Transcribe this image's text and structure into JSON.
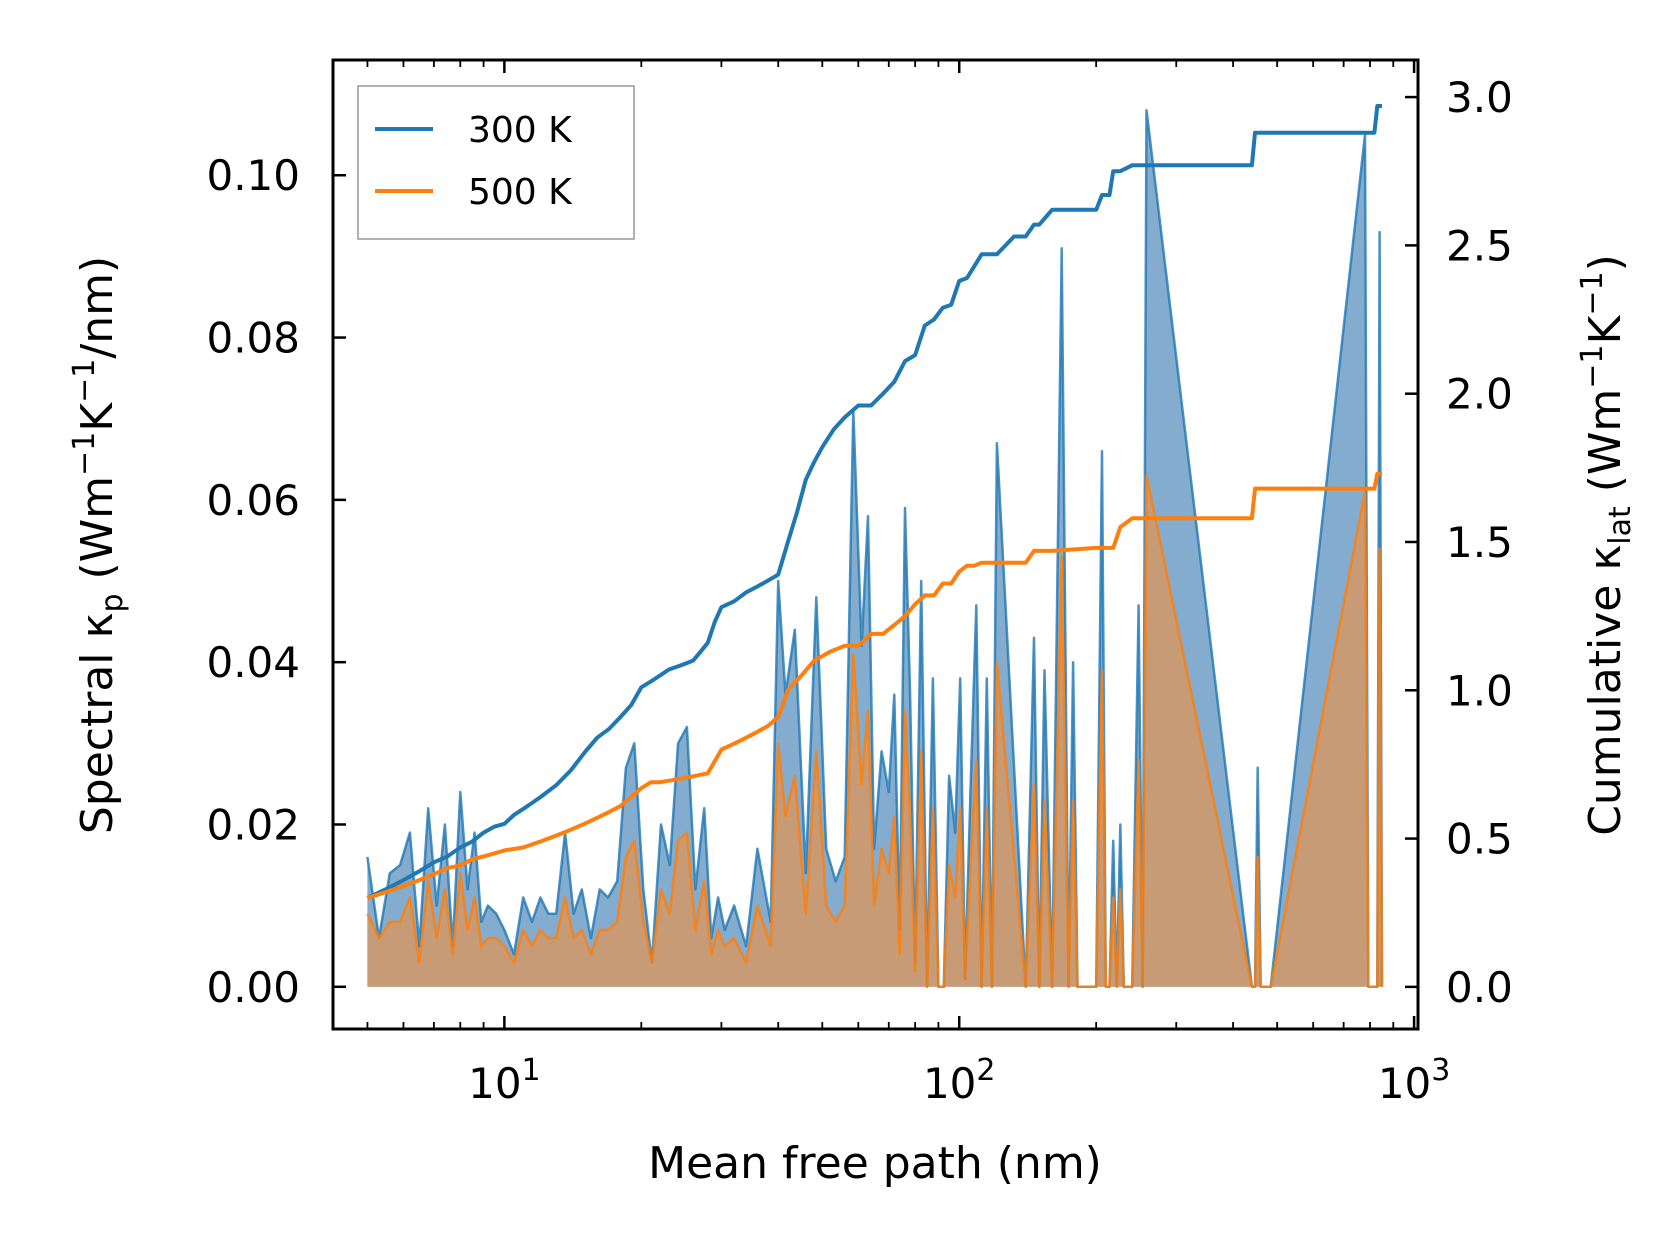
{
  "chart_data": {
    "type": "line",
    "xlabel": "Mean free path (nm)",
    "ylabel_left": {
      "main": "Spectral κ",
      "sub": "p",
      "units_pre": "(Wm",
      "exp1": "−1",
      "units_mid": "K",
      "exp2": "−1",
      "units_post": "/nm)"
    },
    "ylabel_right": {
      "main": "Cumulative κ",
      "sub": "lat",
      "units_pre": "(Wm",
      "exp1": "−1",
      "units_mid": "K",
      "exp2": "−1",
      "units_post": ")"
    },
    "x_scale": "log",
    "xlim": [
      4.2,
      1020
    ],
    "ylim_left": [
      -0.0052,
      0.1142
    ],
    "ylim_right": [
      -0.142,
      3.125
    ],
    "x_ticks": [
      {
        "value": 10,
        "base": "10",
        "exp": "1"
      },
      {
        "value": 100,
        "base": "10",
        "exp": "2"
      },
      {
        "value": 1000,
        "base": "10",
        "exp": "3"
      }
    ],
    "y_ticks_left": [
      "0.00",
      "0.02",
      "0.04",
      "0.06",
      "0.08",
      "0.10"
    ],
    "y_ticks_right": [
      "0.0",
      "0.5",
      "1.0",
      "1.5",
      "2.0",
      "2.5",
      "3.0"
    ],
    "legend": {
      "position": "upper-left",
      "entries": [
        "300 K",
        "500 K"
      ]
    },
    "colors": {
      "series_300K": "#1f77b4",
      "series_500K": "#ff7f0e",
      "fill_300K": "#6d9ec6",
      "fill_500K": "#c99a70"
    },
    "spectral": {
      "x": [
        5.0,
        5.3,
        5.6,
        5.9,
        6.2,
        6.5,
        6.8,
        7.1,
        7.4,
        7.7,
        8.0,
        8.3,
        8.6,
        8.9,
        9.2,
        9.6,
        10.0,
        10.5,
        11.0,
        11.5,
        12.0,
        12.5,
        13.0,
        13.6,
        14.2,
        14.8,
        15.5,
        16.2,
        16.9,
        17.7,
        18.5,
        19.3,
        20.2,
        21.1,
        22.1,
        23.1,
        24.1,
        25.2,
        26.3,
        27.5,
        28.5,
        29.5,
        30.5,
        32.0,
        34.0,
        36.0,
        38.5,
        40.0,
        41.5,
        43.5,
        46.0,
        48.5,
        51.0,
        53.5,
        56.0,
        58.5,
        61.0,
        63.0,
        65.0,
        67.5,
        70.0,
        72.0,
        74.0,
        76.0,
        78.0,
        80.0,
        82.5,
        85.0,
        87.5,
        90.0,
        92.5,
        95.0,
        98.0,
        100.5,
        103.0,
        106.0,
        109.0,
        112.0,
        115.0,
        118.0,
        121.0,
        140.0,
        146.0,
        150.0,
        154.0,
        160.0,
        168.0,
        174.0,
        178.0,
        182.0,
        200.0,
        206.0,
        210.0,
        214.0,
        218.0,
        222.0,
        226.0,
        230.0,
        240.0,
        248.0,
        253.0,
        258.0,
        440.0,
        447.0,
        453.0,
        460.0,
        468.0,
        476.0,
        484.0,
        780.0,
        793.0,
        805.0,
        818.0,
        830.0,
        840.0,
        850.0
      ],
      "k300": [
        0.016,
        0.006,
        0.014,
        0.015,
        0.019,
        0.005,
        0.022,
        0.01,
        0.02,
        0.005,
        0.024,
        0.012,
        0.019,
        0.008,
        0.01,
        0.009,
        0.007,
        0.004,
        0.011,
        0.008,
        0.011,
        0.009,
        0.009,
        0.019,
        0.009,
        0.012,
        0.006,
        0.012,
        0.011,
        0.013,
        0.027,
        0.03,
        0.012,
        0.003,
        0.02,
        0.015,
        0.03,
        0.032,
        0.012,
        0.022,
        0.006,
        0.011,
        0.007,
        0.01,
        0.005,
        0.017,
        0.008,
        0.05,
        0.036,
        0.044,
        0.014,
        0.048,
        0.017,
        0.013,
        0.016,
        0.071,
        0.042,
        0.058,
        0.017,
        0.029,
        0.024,
        0.036,
        0.007,
        0.059,
        0.036,
        0.003,
        0.05,
        0.0,
        0.038,
        0.0,
        0.0,
        0.026,
        0.019,
        0.038,
        0.001,
        0.025,
        0.047,
        0.0,
        0.038,
        0.0,
        0.067,
        0.0,
        0.043,
        0.0,
        0.039,
        0.0,
        0.091,
        0.0,
        0.04,
        0.0,
        0.0,
        0.066,
        0.0,
        0.0,
        0.018,
        0.0,
        0.02,
        0.0,
        0.0,
        0.047,
        0.0,
        0.108,
        0.0,
        0.0,
        0.027,
        0.0,
        0.0,
        0.0,
        0.0,
        0.105,
        0.0,
        0.0,
        0.0,
        0.0,
        0.093,
        0.0
      ],
      "k500": [
        0.009,
        0.006,
        0.008,
        0.008,
        0.011,
        0.003,
        0.013,
        0.006,
        0.012,
        0.004,
        0.014,
        0.007,
        0.011,
        0.005,
        0.006,
        0.006,
        0.005,
        0.003,
        0.007,
        0.005,
        0.007,
        0.006,
        0.006,
        0.011,
        0.006,
        0.007,
        0.004,
        0.007,
        0.007,
        0.008,
        0.016,
        0.018,
        0.008,
        0.003,
        0.012,
        0.009,
        0.018,
        0.019,
        0.007,
        0.013,
        0.004,
        0.007,
        0.005,
        0.006,
        0.003,
        0.01,
        0.005,
        0.03,
        0.021,
        0.026,
        0.009,
        0.029,
        0.01,
        0.008,
        0.01,
        0.041,
        0.025,
        0.034,
        0.01,
        0.017,
        0.014,
        0.021,
        0.004,
        0.034,
        0.021,
        0.002,
        0.029,
        0.0,
        0.022,
        0.0,
        0.0,
        0.015,
        0.011,
        0.022,
        0.001,
        0.015,
        0.028,
        0.0,
        0.022,
        0.0,
        0.04,
        0.0,
        0.025,
        0.0,
        0.023,
        0.0,
        0.053,
        0.0,
        0.023,
        0.0,
        0.0,
        0.039,
        0.0,
        0.0,
        0.011,
        0.0,
        0.012,
        0.0,
        0.0,
        0.028,
        0.0,
        0.063,
        0.0,
        0.0,
        0.016,
        0.0,
        0.0,
        0.0,
        0.0,
        0.061,
        0.0,
        0.0,
        0.0,
        0.0,
        0.054,
        0.0
      ]
    },
    "cumulative": {
      "x300": [
        5.0,
        5.5,
        6.0,
        6.5,
        7.0,
        7.5,
        8.0,
        8.5,
        9.0,
        9.5,
        10.0,
        10.5,
        11.0,
        11.5,
        12.0,
        13.0,
        14.0,
        15.0,
        16.0,
        17.0,
        18.0,
        19.0,
        20.0,
        21.0,
        22.0,
        23.0,
        24.0,
        25.0,
        26.0,
        27.0,
        28.0,
        29.0,
        30.0,
        32.0,
        34.0,
        36.0,
        38.0,
        40.0,
        42.0,
        44.0,
        46.0,
        48.0,
        50.0,
        53.0,
        56.0,
        60.0,
        64.0,
        68.0,
        72.0,
        76.0,
        80.0,
        84.0,
        88.0,
        92.0,
        96.0,
        100.0,
        104.0,
        108.0,
        112.0,
        117.0,
        121.0,
        132.0,
        140.0,
        146.0,
        150.0,
        160.0,
        174.0,
        178.0,
        200.0,
        206.0,
        214.0,
        218.0,
        222.0,
        226.0,
        240.0,
        248.0,
        258.0,
        440.0,
        447.0,
        460.0,
        780.0,
        818.0,
        830.0,
        850.0
      ],
      "k300": [
        0.3,
        0.33,
        0.36,
        0.39,
        0.42,
        0.44,
        0.47,
        0.49,
        0.52,
        0.54,
        0.55,
        0.58,
        0.6,
        0.62,
        0.64,
        0.68,
        0.73,
        0.79,
        0.84,
        0.87,
        0.91,
        0.95,
        1.01,
        1.03,
        1.05,
        1.07,
        1.08,
        1.09,
        1.1,
        1.13,
        1.16,
        1.23,
        1.28,
        1.3,
        1.33,
        1.35,
        1.37,
        1.39,
        1.5,
        1.6,
        1.71,
        1.77,
        1.82,
        1.88,
        1.92,
        1.96,
        1.96,
        2.0,
        2.04,
        2.11,
        2.13,
        2.23,
        2.25,
        2.29,
        2.3,
        2.38,
        2.39,
        2.43,
        2.47,
        2.47,
        2.47,
        2.53,
        2.53,
        2.57,
        2.57,
        2.62,
        2.62,
        2.62,
        2.62,
        2.67,
        2.67,
        2.75,
        2.75,
        2.75,
        2.77,
        2.77,
        2.77,
        2.77,
        2.88,
        2.88,
        2.88,
        2.88,
        2.97,
        2.97
      ],
      "x500": [
        5.0,
        5.5,
        6.0,
        6.5,
        7.0,
        7.5,
        8.0,
        8.5,
        9.0,
        9.5,
        10.0,
        11.0,
        12.0,
        13.0,
        14.0,
        15.0,
        16.0,
        17.0,
        18.0,
        19.0,
        20.0,
        21.0,
        22.0,
        24.0,
        26.0,
        28.0,
        30.0,
        32.0,
        34.0,
        36.0,
        38.0,
        40.0,
        42.0,
        45.0,
        48.0,
        52.0,
        56.0,
        60.0,
        64.0,
        68.0,
        72.0,
        76.0,
        80.0,
        84.0,
        88.0,
        92.0,
        96.0,
        100.0,
        104.0,
        108.0,
        112.0,
        121.0,
        140.0,
        146.0,
        160.0,
        200.0,
        218.0,
        226.0,
        240.0,
        258.0,
        440.0,
        447.0,
        460.0,
        780.0,
        818.0,
        830.0,
        850.0
      ],
      "k500": [
        0.3,
        0.32,
        0.34,
        0.36,
        0.38,
        0.4,
        0.41,
        0.43,
        0.44,
        0.45,
        0.46,
        0.47,
        0.49,
        0.51,
        0.53,
        0.55,
        0.57,
        0.59,
        0.61,
        0.64,
        0.67,
        0.69,
        0.69,
        0.7,
        0.71,
        0.72,
        0.8,
        0.82,
        0.84,
        0.86,
        0.88,
        0.91,
        1.0,
        1.05,
        1.1,
        1.13,
        1.15,
        1.15,
        1.19,
        1.19,
        1.22,
        1.25,
        1.29,
        1.32,
        1.32,
        1.36,
        1.36,
        1.4,
        1.42,
        1.42,
        1.43,
        1.43,
        1.43,
        1.47,
        1.47,
        1.48,
        1.48,
        1.55,
        1.58,
        1.58,
        1.58,
        1.68,
        1.68,
        1.68,
        1.68,
        1.73,
        1.73
      ]
    }
  }
}
